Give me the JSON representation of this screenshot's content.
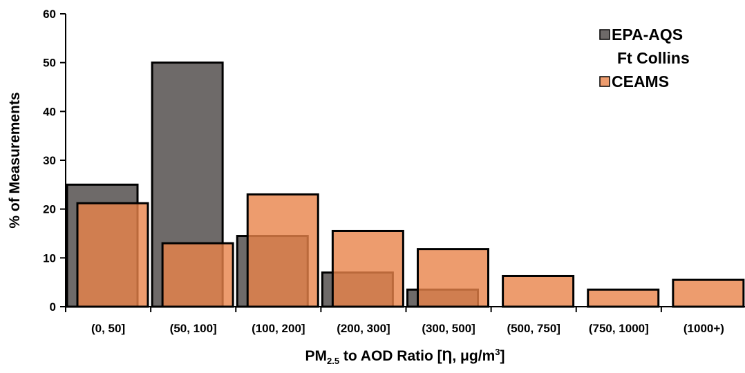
{
  "chart_data": {
    "type": "bar",
    "categories": [
      "(0, 50]",
      "(50, 100]",
      "(100, 200]",
      "(200, 300]",
      "(300, 500]",
      "(500, 750]",
      "(750, 1000]",
      "(1000+)"
    ],
    "series": [
      {
        "name": "EPA-AQS Ft Collins",
        "legend_lines": [
          "EPA-AQS",
          "Ft Collins"
        ],
        "color": "#6e6a69",
        "values": [
          25,
          50,
          14.5,
          7,
          3.5,
          0,
          0,
          0
        ]
      },
      {
        "name": "CEAMS",
        "legend_lines": [
          "CEAMS"
        ],
        "color": "#e8834a",
        "opacity": 0.8,
        "values": [
          21.2,
          13,
          23,
          15.5,
          11.8,
          6.3,
          3.5,
          5.5
        ]
      }
    ],
    "ylabel": "% of Measurements",
    "xlabel": {
      "prefix": "PM",
      "subscript": "2.5",
      "mid": " to AOD Ratio [Ƞ, μg/m",
      "superscript": "3",
      "suffix": "]"
    },
    "ylim": [
      0,
      60
    ],
    "yticks": [
      0,
      10,
      20,
      30,
      40,
      50,
      60
    ],
    "legend_position": "top-right",
    "grid": false
  }
}
